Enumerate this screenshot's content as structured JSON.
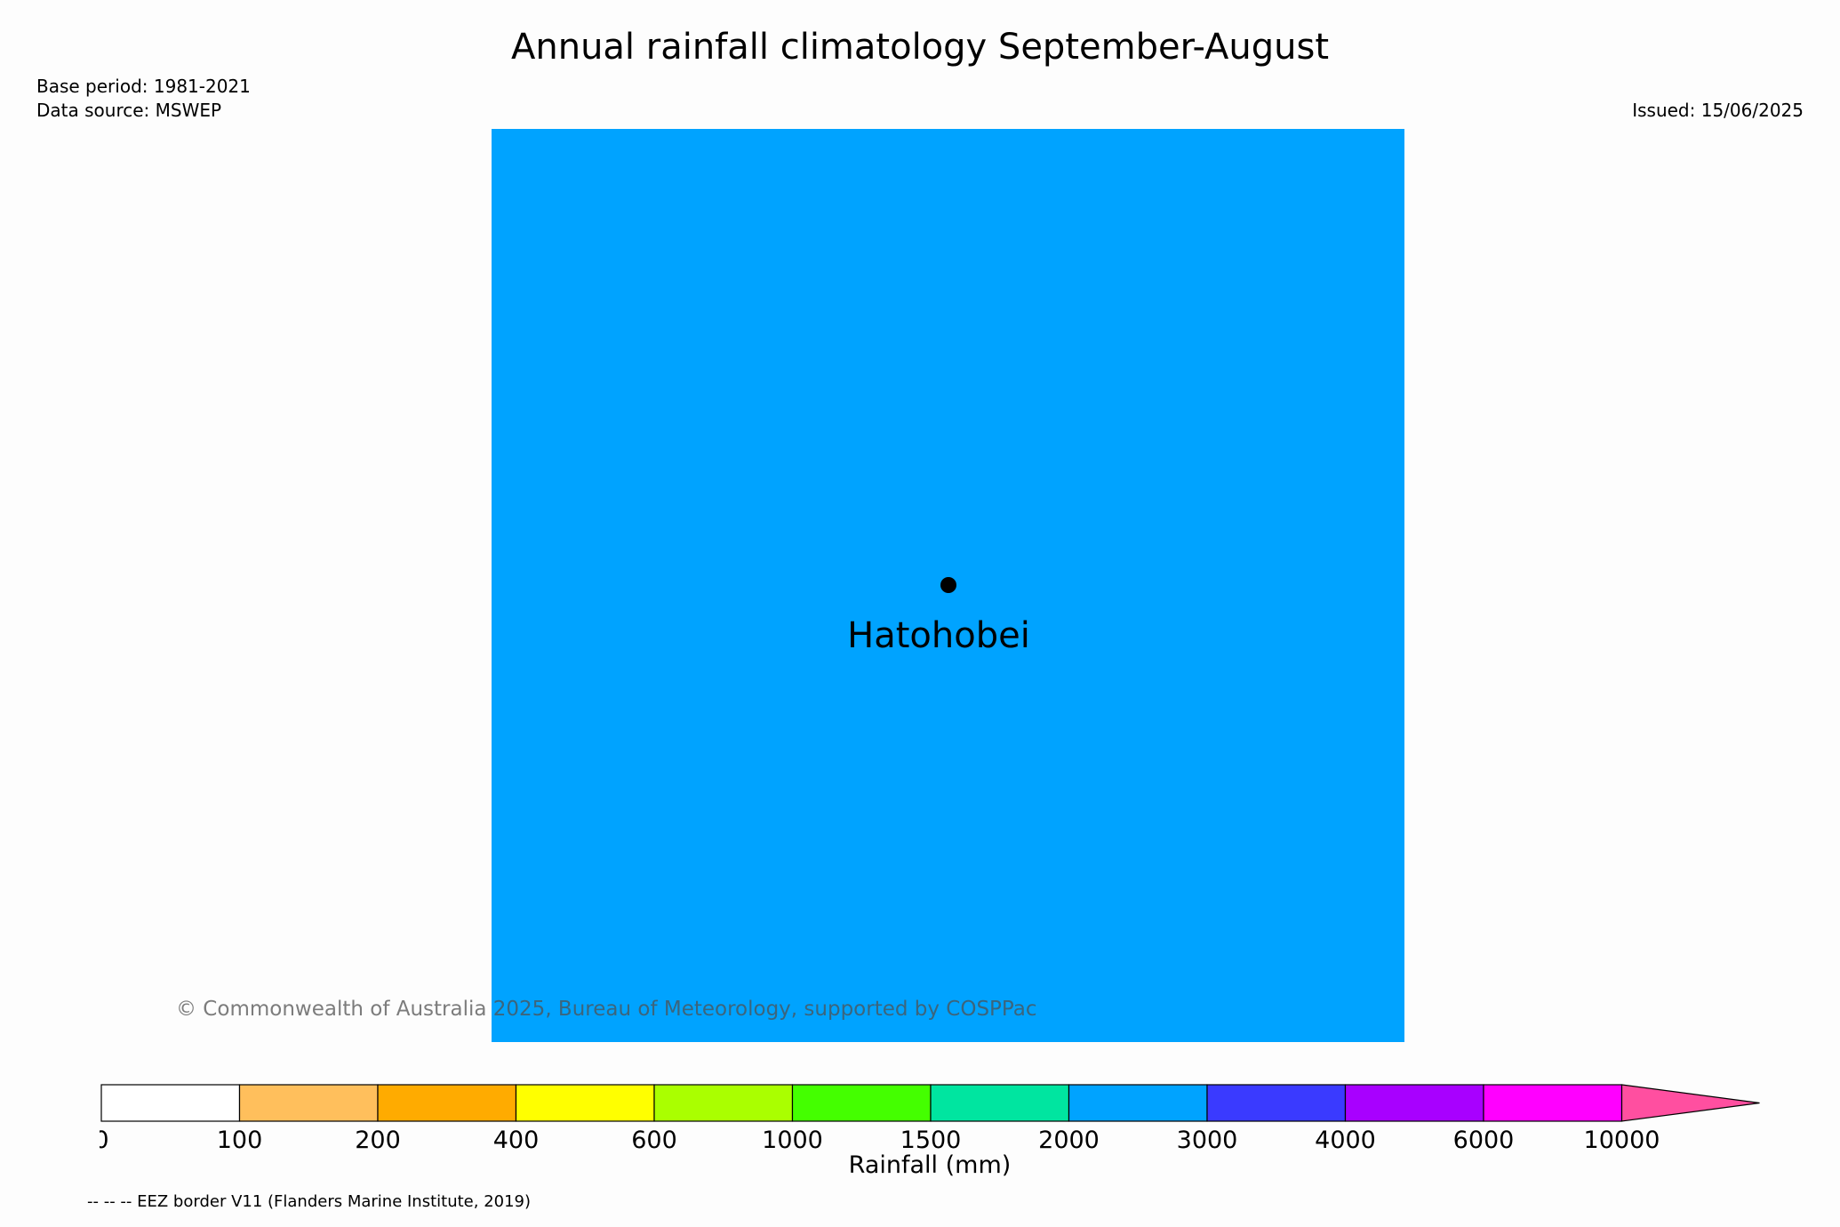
{
  "title": "Annual rainfall climatology September-August",
  "base_period": "Base period: 1981-2021",
  "data_source": "Data source: MSWEP",
  "issued": "Issued: 15/06/2025",
  "map": {
    "fill_color": "#00a3ff",
    "location": "Hatohobei"
  },
  "copyright": "© Commonwealth of Australia 2025, Bureau of Meteorology, supported by COSPPac",
  "colorbar": {
    "title": "Rainfall (mm)",
    "ticks": [
      "0",
      "100",
      "200",
      "400",
      "600",
      "1000",
      "1500",
      "2000",
      "3000",
      "4000",
      "6000",
      "10000"
    ],
    "colors": [
      "#ffffff",
      "#ffbf5c",
      "#ffab00",
      "#ffff00",
      "#aaff00",
      "#44ff00",
      "#00e5a0",
      "#00a3ff",
      "#3a3aff",
      "#a800ff",
      "#ff00ff"
    ],
    "extend_color": "#ff4fa0"
  },
  "eez_note": "-- -- -- EEZ border V11 (Flanders Marine Institute, 2019)"
}
